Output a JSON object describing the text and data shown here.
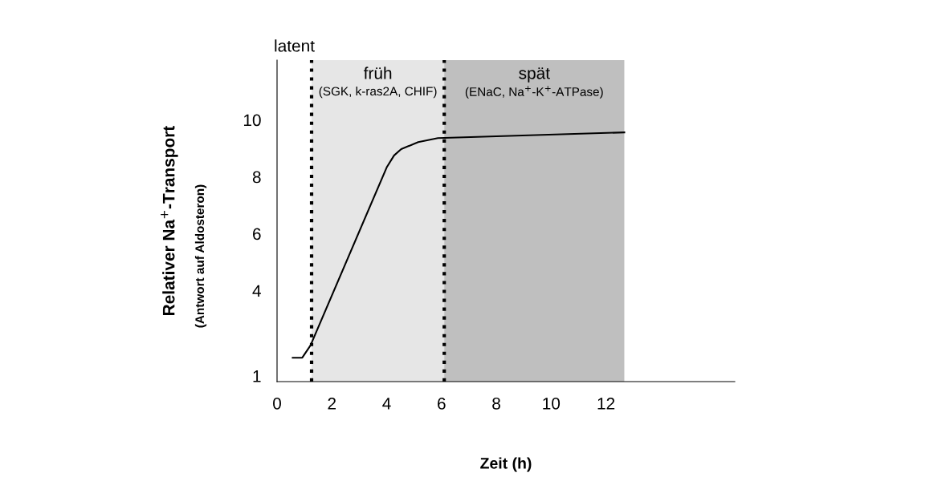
{
  "chart_data": {
    "type": "line",
    "xlabel": "Zeit (h)",
    "ylabel": "Relativer Na$^{+}$-Transport",
    "annotations": [
      "(Antwort auf Aldosteron)",
      "latent",
      "(SGK, k-ras2A, CHIF)",
      "(ENaC, Na$^{+}$-K$^{+}$-ATPase)"
    ],
    "x": [
      0.57,
      0.92,
      1.22,
      1.38,
      4.0,
      4.27,
      4.53,
      5.15,
      5.87,
      12.67
    ],
    "series": [
      {
        "color": "#000000",
        "values": [
          1.64,
          1.64,
          2.07,
          2.43,
          8.33,
          8.75,
          8.97,
          9.22,
          9.36,
          9.56
        ]
      }
    ],
    "xlim": [
      0,
      16.7
    ],
    "xticks": [
      0,
      2,
      4,
      6,
      8,
      10,
      12
    ],
    "ylim": [
      0.8,
      12.1
    ],
    "yticks": [
      1,
      4,
      6,
      8,
      10
    ],
    "bands": [
      {
        "axis": "x",
        "from": 1.26,
        "to": 6.1,
        "label": "früh",
        "color": "#e6e6e6"
      },
      {
        "axis": "x",
        "from": 6.1,
        "to": 12.67,
        "label": "spät",
        "color": "#bfbfbf"
      }
    ],
    "ref_lines": [
      {
        "axis": "x",
        "value": 1.26,
        "line_style": "dotted"
      },
      {
        "axis": "x",
        "value": 6.1,
        "line_style": "dotted"
      }
    ],
    "grid": false,
    "legend": false,
    "marker": "none",
    "line_style": "solid"
  }
}
